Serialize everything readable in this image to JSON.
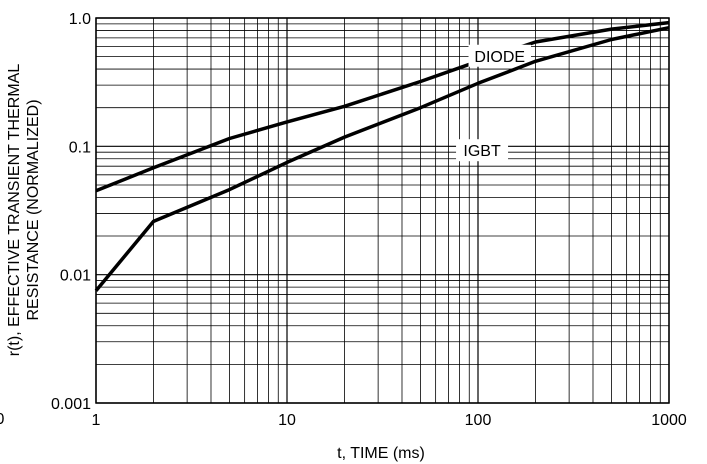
{
  "chart_data": {
    "type": "line",
    "title": "",
    "xlabel": "t, TIME (ms)",
    "ylabel_line1": "r(t), EFFECTIVE TRANSIENT THERMAL",
    "ylabel_line2": "RESISTANCE (NORMALIZED)",
    "x_scale": "log",
    "y_scale": "log",
    "xlim": [
      1,
      1000
    ],
    "ylim": [
      0.001,
      1.0
    ],
    "grid": true,
    "x_ticks": [
      {
        "value": 1,
        "label": "1"
      },
      {
        "value": 10,
        "label": "10"
      },
      {
        "value": 100,
        "label": "100"
      },
      {
        "value": 1000,
        "label": "1000"
      }
    ],
    "y_ticks": [
      {
        "value": 0.001,
        "label": "0.001"
      },
      {
        "value": 0.01,
        "label": "0.01"
      },
      {
        "value": 0.1,
        "label": "0.1"
      },
      {
        "value": 1.0,
        "label": "1.0"
      }
    ],
    "left_edge_fragment": "0",
    "series": [
      {
        "name": "DIODE",
        "label_at": {
          "x": 130,
          "y": 0.49
        },
        "points": [
          [
            1,
            0.045
          ],
          [
            2,
            0.068
          ],
          [
            5,
            0.115
          ],
          [
            10,
            0.155
          ],
          [
            20,
            0.205
          ],
          [
            50,
            0.32
          ],
          [
            100,
            0.46
          ],
          [
            200,
            0.65
          ],
          [
            500,
            0.82
          ],
          [
            1000,
            0.92
          ]
        ]
      },
      {
        "name": "IGBT",
        "label_at": {
          "x": 105,
          "y": 0.09
        },
        "points": [
          [
            1,
            0.0075
          ],
          [
            2,
            0.026
          ],
          [
            5,
            0.046
          ],
          [
            10,
            0.075
          ],
          [
            20,
            0.118
          ],
          [
            50,
            0.2
          ],
          [
            100,
            0.31
          ],
          [
            200,
            0.46
          ],
          [
            500,
            0.68
          ],
          [
            1000,
            0.84
          ]
        ]
      }
    ]
  }
}
